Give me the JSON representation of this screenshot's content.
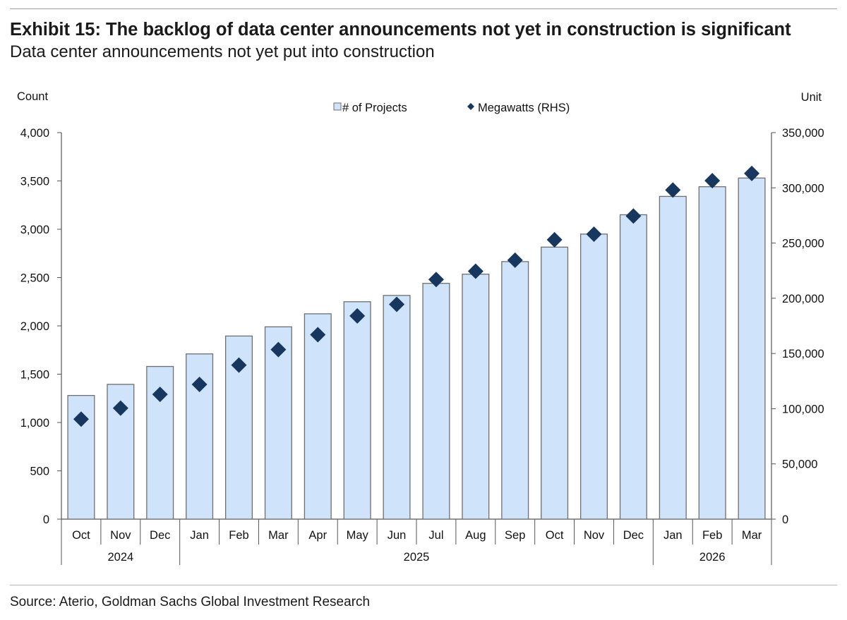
{
  "header": {
    "title": "Exhibit 15: The backlog of data center announcements not yet in construction is significant",
    "subtitle": "Data center announcements not yet put into construction"
  },
  "footer": {
    "source": "Source: Aterio, Goldman Sachs Global Investment Research"
  },
  "colors": {
    "bar_fill": "#cfe3fb",
    "bar_stroke": "#6f6f6f",
    "marker": "#17375e",
    "axis": "#555555"
  },
  "chart_data": {
    "type": "bar",
    "categories": [
      "Oct",
      "Nov",
      "Dec",
      "Jan",
      "Feb",
      "Mar",
      "Apr",
      "May",
      "Jun",
      "Jul",
      "Aug",
      "Sep",
      "Oct",
      "Nov",
      "Dec",
      "Jan",
      "Feb",
      "Mar"
    ],
    "year_groups": [
      {
        "label": "2024",
        "count": 3
      },
      {
        "label": "2025",
        "count": 12
      },
      {
        "label": "2026",
        "count": 3
      }
    ],
    "series": [
      {
        "name": "# of Projects",
        "type": "bar",
        "axis": "left",
        "values": [
          1280,
          1395,
          1580,
          1710,
          1895,
          1990,
          2125,
          2250,
          2315,
          2440,
          2535,
          2665,
          2815,
          2950,
          3150,
          3340,
          3440,
          3530
        ]
      },
      {
        "name": "Megawatts (RHS)",
        "type": "scatter",
        "marker": "diamond",
        "axis": "right",
        "values": [
          90500,
          100500,
          113000,
          122000,
          139500,
          153500,
          167000,
          184000,
          194500,
          217000,
          224500,
          234500,
          253000,
          258000,
          274500,
          298000,
          306500,
          313000
        ]
      }
    ],
    "y_left": {
      "label": "Count",
      "min": 0,
      "max": 4000,
      "ticks": [
        "0",
        "500",
        "1,000",
        "1,500",
        "2,000",
        "2,500",
        "3,000",
        "3,500",
        "4,000"
      ]
    },
    "y_right": {
      "label": "Unit",
      "min": 0,
      "max": 350000,
      "ticks": [
        "0",
        "50,000",
        "100,000",
        "150,000",
        "200,000",
        "250,000",
        "300,000",
        "350,000"
      ]
    },
    "legend": {
      "position": "top-center"
    },
    "grid": false
  }
}
